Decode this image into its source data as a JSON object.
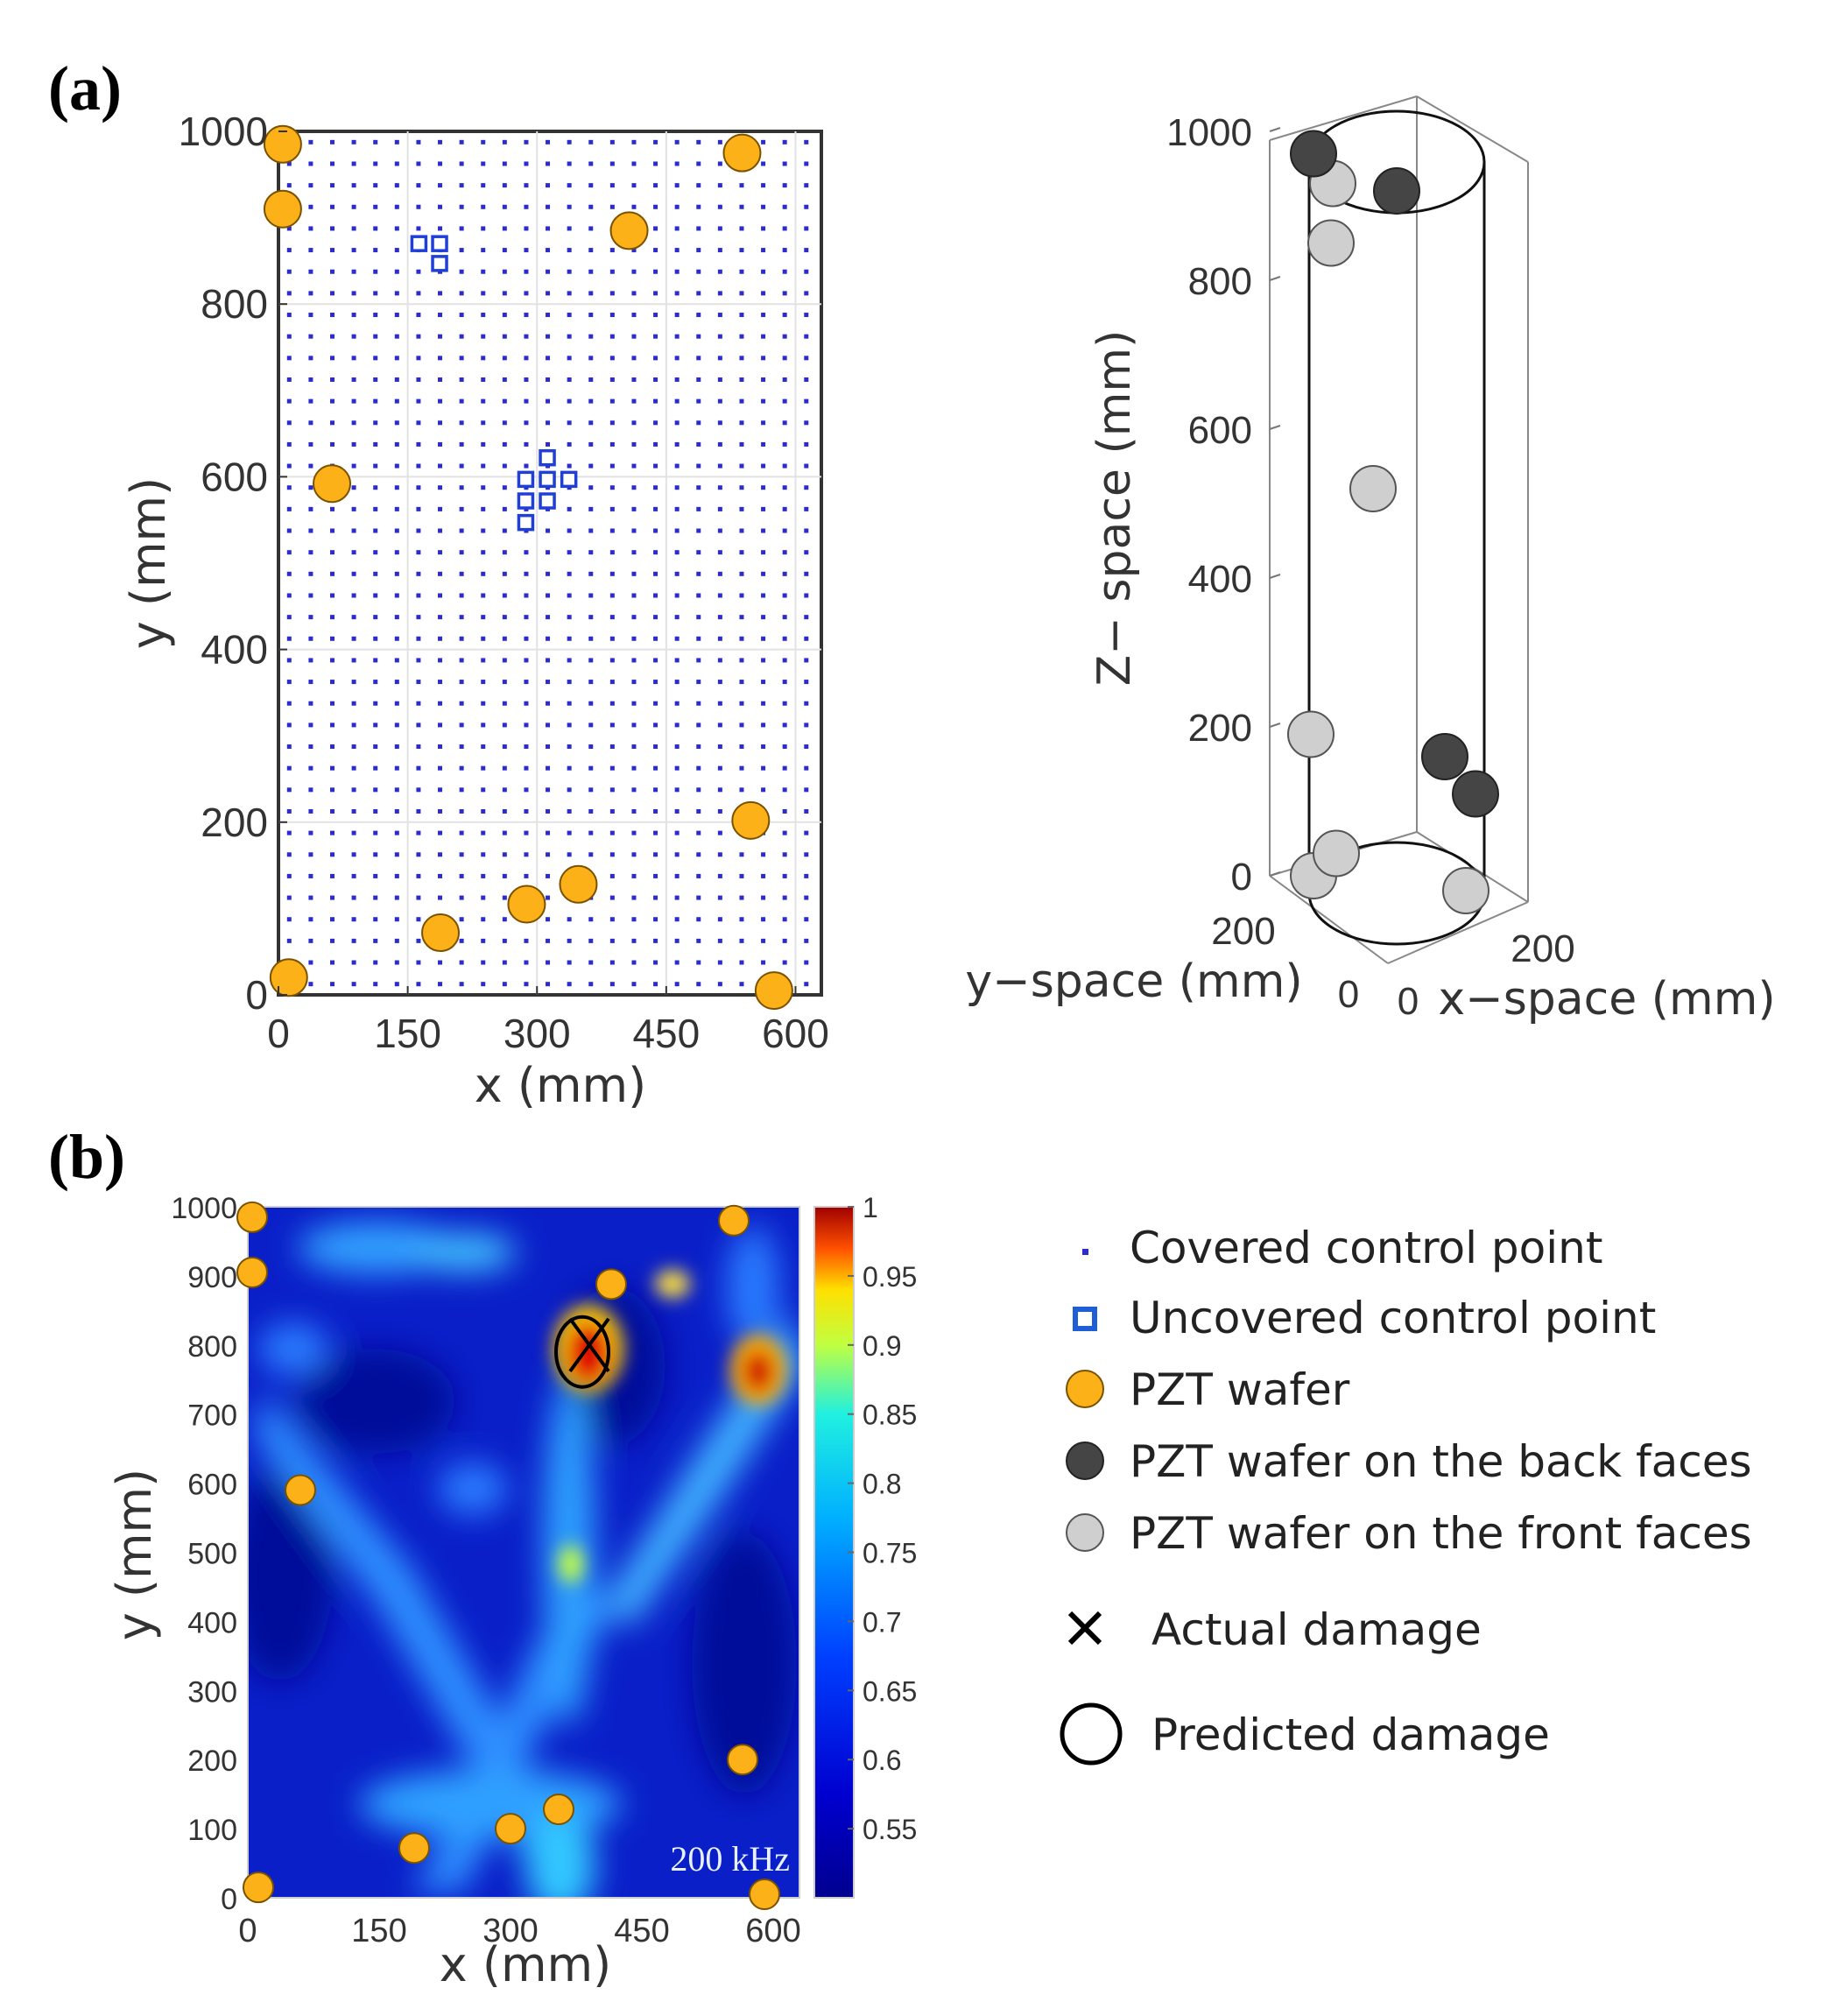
{
  "figure": {
    "panel_a_label": "(a)",
    "panel_b_label": "(b)"
  },
  "colors": {
    "pzt": "#FBB117",
    "pzt_stroke": "#7a5200",
    "covered": "#2b2bcf",
    "uncovered": "#1f3fd6",
    "back": "#454545",
    "front": "#cfcfcf"
  },
  "chart_data": [
    {
      "id": "plate",
      "type": "scatter",
      "xlabel": "x (mm)",
      "ylabel": "y (mm)",
      "xlim": [
        0,
        630
      ],
      "ylim": [
        0,
        1000
      ],
      "xticks": [
        "0",
        "150",
        "300",
        "450",
        "600"
      ],
      "yticks": [
        "0",
        "200",
        "400",
        "600",
        "800",
        "1000"
      ],
      "covered_grid": {
        "x_step": 25,
        "y_step": 25
      },
      "uncovered_points": [
        [
          163,
          870
        ],
        [
          187,
          870
        ],
        [
          187,
          847
        ],
        [
          287,
          597
        ],
        [
          312,
          597
        ],
        [
          337,
          597
        ],
        [
          312,
          622
        ],
        [
          287,
          572
        ],
        [
          312,
          572
        ],
        [
          287,
          547
        ]
      ],
      "pzt_wafers": [
        [
          5,
          985
        ],
        [
          5,
          910
        ],
        [
          62,
          592
        ],
        [
          538,
          975
        ],
        [
          407,
          885
        ],
        [
          548,
          202
        ],
        [
          348,
          128
        ],
        [
          288,
          105
        ],
        [
          188,
          72
        ],
        [
          12,
          20
        ],
        [
          575,
          5
        ]
      ]
    },
    {
      "id": "cylinder",
      "type": "scatter3d",
      "zlabel": "Z− space (mm)",
      "ylabel": "y−space (mm)",
      "xlabel": "x−space (mm)",
      "zticks": [
        "0",
        "200",
        "400",
        "600",
        "800",
        "1000"
      ],
      "x_ticks": [
        "0",
        "200"
      ],
      "y_ticks": [
        "0",
        "200"
      ],
      "back_face_wafers": [
        [
          1,
          970
        ],
        [
          2,
          920
        ],
        [
          3,
          160
        ],
        [
          4,
          110
        ]
      ],
      "front_face_wafers": [
        [
          5,
          930
        ],
        [
          6,
          850
        ],
        [
          7,
          520
        ],
        [
          8,
          190
        ],
        [
          9,
          0
        ],
        [
          10,
          30
        ],
        [
          11,
          -20
        ]
      ]
    },
    {
      "id": "heatmap",
      "type": "heatmap",
      "xlabel": "x (mm)",
      "ylabel": "y (mm)",
      "xlim": [
        0,
        630
      ],
      "ylim": [
        0,
        1000
      ],
      "xticks": [
        "0",
        "150",
        "300",
        "450",
        "600"
      ],
      "yticks": [
        "0",
        "100",
        "200",
        "300",
        "400",
        "500",
        "600",
        "700",
        "800",
        "900",
        "1000"
      ],
      "colorbar_ticks": [
        "1",
        "0.95",
        "0.9",
        "0.85",
        "0.8",
        "0.75",
        "0.7",
        "0.65",
        "0.6",
        "0.55"
      ],
      "colorbar_range": [
        0.5,
        1.0
      ],
      "annotation": "200 kHz",
      "actual_damage": [
        390,
        800
      ],
      "predicted_damage": [
        390,
        790
      ],
      "pzt_wafers": [
        [
          5,
          985
        ],
        [
          5,
          905
        ],
        [
          60,
          590
        ],
        [
          555,
          980
        ],
        [
          415,
          888
        ],
        [
          565,
          200
        ],
        [
          355,
          128
        ],
        [
          300,
          100
        ],
        [
          190,
          72
        ],
        [
          12,
          15
        ],
        [
          590,
          5
        ]
      ]
    }
  ],
  "legend": {
    "covered": "Covered control point",
    "uncovered": "Uncovered control point",
    "pzt": "PZT wafer",
    "back": "PZT wafer on the back faces",
    "front": "PZT wafer on the front faces",
    "actual": "Actual damage",
    "predicted": "Predicted damage"
  }
}
